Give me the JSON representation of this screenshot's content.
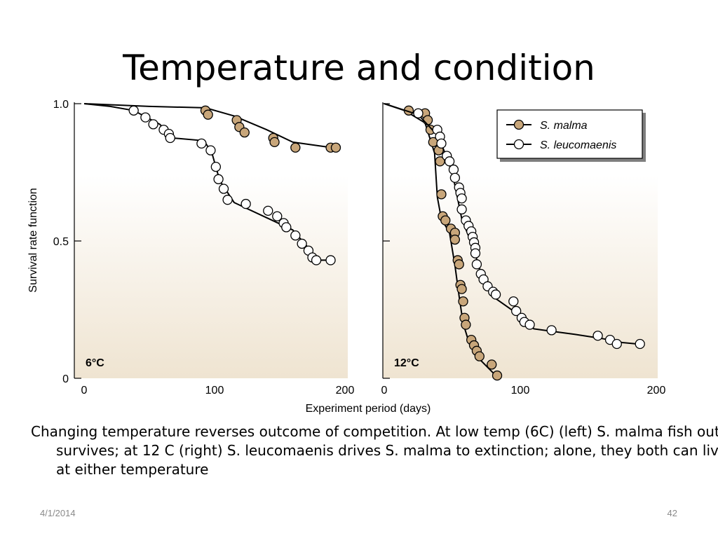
{
  "slide": {
    "title": "Temperature and condition",
    "caption": "Changing temperature reverses outcome of competition. At low temp (6C) (left) S. malma fish out survives; at 12 C (right) S. leucomaenis drives S. malma to extinction; alone, they both can live at either temperature",
    "date": "4/1/2014",
    "page_number": "42"
  },
  "colors": {
    "malma_fill": "#c8a67a",
    "leucomaenis_fill": "#ffffff",
    "gradient_top": "#ffffff",
    "gradient_bottom": "#efe4d1"
  },
  "chart_data": [
    {
      "type": "line",
      "panel_label": "6°C",
      "xlabel": "Experiment period (days)",
      "ylabel": "Survival rate function",
      "xlim": [
        0,
        200
      ],
      "ylim": [
        0,
        1.0
      ],
      "x_ticks": [
        "0",
        "100",
        "200"
      ],
      "y_ticks": [
        "0",
        "0.5",
        "1.0"
      ],
      "grid": false,
      "series": [
        {
          "name": "S. malma",
          "marker": "filled",
          "line": [
            [
              0,
              1.0
            ],
            [
              50,
              0.99
            ],
            [
              93,
              0.985
            ],
            [
              115,
              0.955
            ],
            [
              140,
              0.905
            ],
            [
              160,
              0.86
            ],
            [
              190,
              0.84
            ],
            [
              194,
              0.84
            ]
          ],
          "points": [
            [
              93,
              0.975
            ],
            [
              95,
              0.96
            ],
            [
              117,
              0.94
            ],
            [
              119,
              0.915
            ],
            [
              123,
              0.895
            ],
            [
              145,
              0.875
            ],
            [
              146,
              0.86
            ],
            [
              162,
              0.84
            ],
            [
              189,
              0.84
            ],
            [
              193,
              0.84
            ]
          ]
        },
        {
          "name": "S. leucomaenis",
          "marker": "open",
          "line": [
            [
              0,
              1.0
            ],
            [
              20,
              0.99
            ],
            [
              38,
              0.975
            ],
            [
              58,
              0.925
            ],
            [
              68,
              0.875
            ],
            [
              92,
              0.865
            ],
            [
              98,
              0.82
            ],
            [
              104,
              0.72
            ],
            [
              115,
              0.64
            ],
            [
              160,
              0.54
            ],
            [
              180,
              0.43
            ],
            [
              189,
              0.43
            ]
          ],
          "points": [
            [
              38,
              0.975
            ],
            [
              47,
              0.95
            ],
            [
              53,
              0.925
            ],
            [
              61,
              0.905
            ],
            [
              65,
              0.89
            ],
            [
              66,
              0.875
            ],
            [
              90,
              0.855
            ],
            [
              97,
              0.83
            ],
            [
              101,
              0.77
            ],
            [
              103,
              0.725
            ],
            [
              107,
              0.69
            ],
            [
              110,
              0.65
            ],
            [
              124,
              0.635
            ],
            [
              141,
              0.61
            ],
            [
              148,
              0.59
            ],
            [
              153,
              0.565
            ],
            [
              155,
              0.55
            ],
            [
              162,
              0.52
            ],
            [
              167,
              0.49
            ],
            [
              172,
              0.465
            ],
            [
              175,
              0.44
            ],
            [
              178,
              0.43
            ],
            [
              189,
              0.43
            ]
          ]
        }
      ]
    },
    {
      "type": "line",
      "panel_label": "12°C",
      "xlabel": "Experiment period (days)",
      "ylabel": "Survival rate function",
      "xlim": [
        0,
        200
      ],
      "ylim": [
        0,
        1.0
      ],
      "x_ticks": [
        "0",
        "100",
        "200"
      ],
      "y_ticks": [
        "0",
        "0.5",
        "1.0"
      ],
      "grid": false,
      "legend_position": "top-right",
      "series": [
        {
          "name": "S. malma",
          "marker": "filled",
          "line": [
            [
              0,
              1.0
            ],
            [
              15,
              0.975
            ],
            [
              30,
              0.93
            ],
            [
              37,
              0.82
            ],
            [
              39,
              0.66
            ],
            [
              42,
              0.58
            ],
            [
              48,
              0.53
            ],
            [
              52,
              0.41
            ],
            [
              55,
              0.3
            ],
            [
              58,
              0.2
            ],
            [
              63,
              0.12
            ],
            [
              70,
              0.07
            ],
            [
              80,
              0.02
            ],
            [
              83,
              0.0
            ]
          ],
          "points": [
            [
              18,
              0.975
            ],
            [
              30,
              0.965
            ],
            [
              32,
              0.94
            ],
            [
              34,
              0.905
            ],
            [
              36,
              0.86
            ],
            [
              40,
              0.83
            ],
            [
              41,
              0.79
            ],
            [
              42,
              0.67
            ],
            [
              43,
              0.59
            ],
            [
              45,
              0.575
            ],
            [
              49,
              0.545
            ],
            [
              52,
              0.53
            ],
            [
              52,
              0.505
            ],
            [
              54,
              0.43
            ],
            [
              55,
              0.415
            ],
            [
              56,
              0.34
            ],
            [
              57,
              0.325
            ],
            [
              58,
              0.28
            ],
            [
              59,
              0.22
            ],
            [
              60,
              0.195
            ],
            [
              64,
              0.14
            ],
            [
              66,
              0.12
            ],
            [
              68,
              0.1
            ],
            [
              70,
              0.08
            ],
            [
              79,
              0.05
            ],
            [
              83,
              0.01
            ]
          ]
        },
        {
          "name": "S. leucomaenis",
          "marker": "open",
          "line": [
            [
              0,
              1.0
            ],
            [
              25,
              0.96
            ],
            [
              40,
              0.88
            ],
            [
              50,
              0.75
            ],
            [
              57,
              0.58
            ],
            [
              65,
              0.48
            ],
            [
              72,
              0.37
            ],
            [
              82,
              0.29
            ],
            [
              95,
              0.245
            ],
            [
              110,
              0.18
            ],
            [
              125,
              0.17
            ],
            [
              140,
              0.16
            ],
            [
              160,
              0.145
            ],
            [
              175,
              0.13
            ],
            [
              186,
              0.125
            ]
          ],
          "points": [
            [
              25,
              0.965
            ],
            [
              39,
              0.905
            ],
            [
              41,
              0.88
            ],
            [
              42,
              0.855
            ],
            [
              46,
              0.81
            ],
            [
              48,
              0.79
            ],
            [
              51,
              0.76
            ],
            [
              52,
              0.73
            ],
            [
              55,
              0.695
            ],
            [
              56,
              0.675
            ],
            [
              57,
              0.655
            ],
            [
              57,
              0.615
            ],
            [
              60,
              0.575
            ],
            [
              62,
              0.555
            ],
            [
              64,
              0.535
            ],
            [
              65,
              0.515
            ],
            [
              66,
              0.495
            ],
            [
              67,
              0.475
            ],
            [
              67,
              0.455
            ],
            [
              68,
              0.415
            ],
            [
              71,
              0.38
            ],
            [
              73,
              0.36
            ],
            [
              76,
              0.335
            ],
            [
              80,
              0.315
            ],
            [
              82,
              0.305
            ],
            [
              95,
              0.28
            ],
            [
              97,
              0.245
            ],
            [
              101,
              0.22
            ],
            [
              103,
              0.205
            ],
            [
              107,
              0.195
            ],
            [
              123,
              0.175
            ],
            [
              157,
              0.155
            ],
            [
              166,
              0.14
            ],
            [
              171,
              0.125
            ],
            [
              188,
              0.125
            ]
          ]
        }
      ]
    }
  ]
}
